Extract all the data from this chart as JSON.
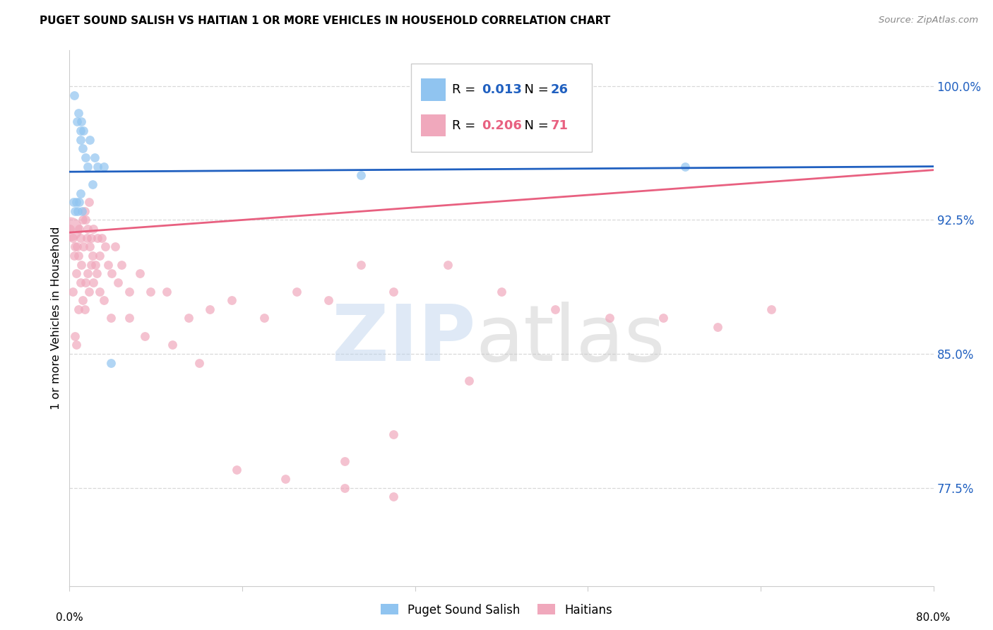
{
  "title": "PUGET SOUND SALISH VS HAITIAN 1 OR MORE VEHICLES IN HOUSEHOLD CORRELATION CHART",
  "source": "Source: ZipAtlas.com",
  "ylabel": "1 or more Vehicles in Household",
  "xmin": 0.0,
  "xmax": 80.0,
  "ymin": 72.0,
  "ymax": 102.0,
  "yticks_right": [
    77.5,
    85.0,
    92.5,
    100.0
  ],
  "ytick_labels_right": [
    "77.5%",
    "85.0%",
    "92.5%",
    "100.0%"
  ],
  "blue_color": "#90c4f0",
  "pink_color": "#f0a8bc",
  "blue_line_color": "#2060c0",
  "pink_line_color": "#e86080",
  "grid_color": "#d8d8d8",
  "blue_scatter_x": [
    0.4,
    0.7,
    0.8,
    1.0,
    1.05,
    1.1,
    1.2,
    1.3,
    1.5,
    1.7,
    1.9,
    2.1,
    2.3,
    2.6,
    3.2,
    3.8,
    0.35,
    0.5,
    0.6,
    0.75,
    0.9,
    1.0,
    1.15,
    27.0,
    57.0
  ],
  "blue_scatter_y": [
    99.5,
    98.0,
    98.5,
    97.5,
    97.0,
    98.0,
    96.5,
    97.5,
    96.0,
    95.5,
    97.0,
    94.5,
    96.0,
    95.5,
    95.5,
    84.5,
    93.5,
    93.0,
    93.5,
    93.0,
    93.5,
    94.0,
    93.0,
    95.0,
    95.5
  ],
  "blue_dot_sizes": [
    80,
    80,
    80,
    80,
    80,
    80,
    80,
    80,
    80,
    80,
    80,
    80,
    80,
    80,
    80,
    80,
    80,
    80,
    80,
    80,
    80,
    80,
    80,
    80,
    80
  ],
  "pink_scatter_x": [
    0.05,
    0.3,
    0.4,
    0.5,
    0.6,
    0.7,
    0.8,
    0.9,
    1.0,
    1.1,
    1.2,
    1.3,
    1.4,
    1.5,
    1.6,
    1.7,
    1.8,
    1.9,
    2.0,
    2.1,
    2.2,
    2.4,
    2.6,
    2.8,
    3.0,
    3.3,
    3.6,
    3.9,
    4.2,
    4.8,
    5.5,
    6.5,
    7.5,
    9.0,
    11.0,
    13.0,
    15.0,
    18.0,
    21.0,
    24.0,
    27.0,
    30.0,
    35.0,
    40.0,
    45.0,
    50.0,
    55.0,
    60.0,
    65.0
  ],
  "pink_scatter_y": [
    92.0,
    91.5,
    90.5,
    91.0,
    89.5,
    91.0,
    90.5,
    92.0,
    91.5,
    90.0,
    92.5,
    91.0,
    93.0,
    92.5,
    91.5,
    92.0,
    93.5,
    91.0,
    91.5,
    90.5,
    92.0,
    90.0,
    91.5,
    90.5,
    91.5,
    91.0,
    90.0,
    89.5,
    91.0,
    90.0,
    88.5,
    89.5,
    88.5,
    88.5,
    87.0,
    87.5,
    88.0,
    87.0,
    88.5,
    88.0,
    90.0,
    88.5,
    90.0,
    88.5,
    87.5,
    87.0,
    87.0,
    86.5,
    87.5
  ],
  "pink_dot_sizes_large": [
    600
  ],
  "pink_large_x": [
    0.05
  ],
  "pink_large_y": [
    92.0
  ],
  "pink_extra_x": [
    0.3,
    0.5,
    0.6,
    0.8,
    1.0,
    1.2,
    1.4,
    1.5,
    1.7,
    1.8,
    2.0,
    2.2,
    2.5,
    2.8,
    3.2,
    3.8,
    4.5,
    5.5,
    7.0,
    9.5,
    12.0,
    15.5,
    20.0,
    25.5,
    30.0,
    37.0,
    25.5,
    30.0
  ],
  "pink_extra_y": [
    88.5,
    86.0,
    85.5,
    87.5,
    89.0,
    88.0,
    87.5,
    89.0,
    89.5,
    88.5,
    90.0,
    89.0,
    89.5,
    88.5,
    88.0,
    87.0,
    89.0,
    87.0,
    86.0,
    85.5,
    84.5,
    78.5,
    78.0,
    79.0,
    80.5,
    83.5,
    77.5,
    77.0
  ],
  "blue_line": {
    "x0": 0.0,
    "x1": 80.0,
    "y0": 95.2,
    "y1": 95.5
  },
  "pink_line": {
    "x0": 0.0,
    "x1": 80.0,
    "y0": 91.8,
    "y1": 95.3
  }
}
